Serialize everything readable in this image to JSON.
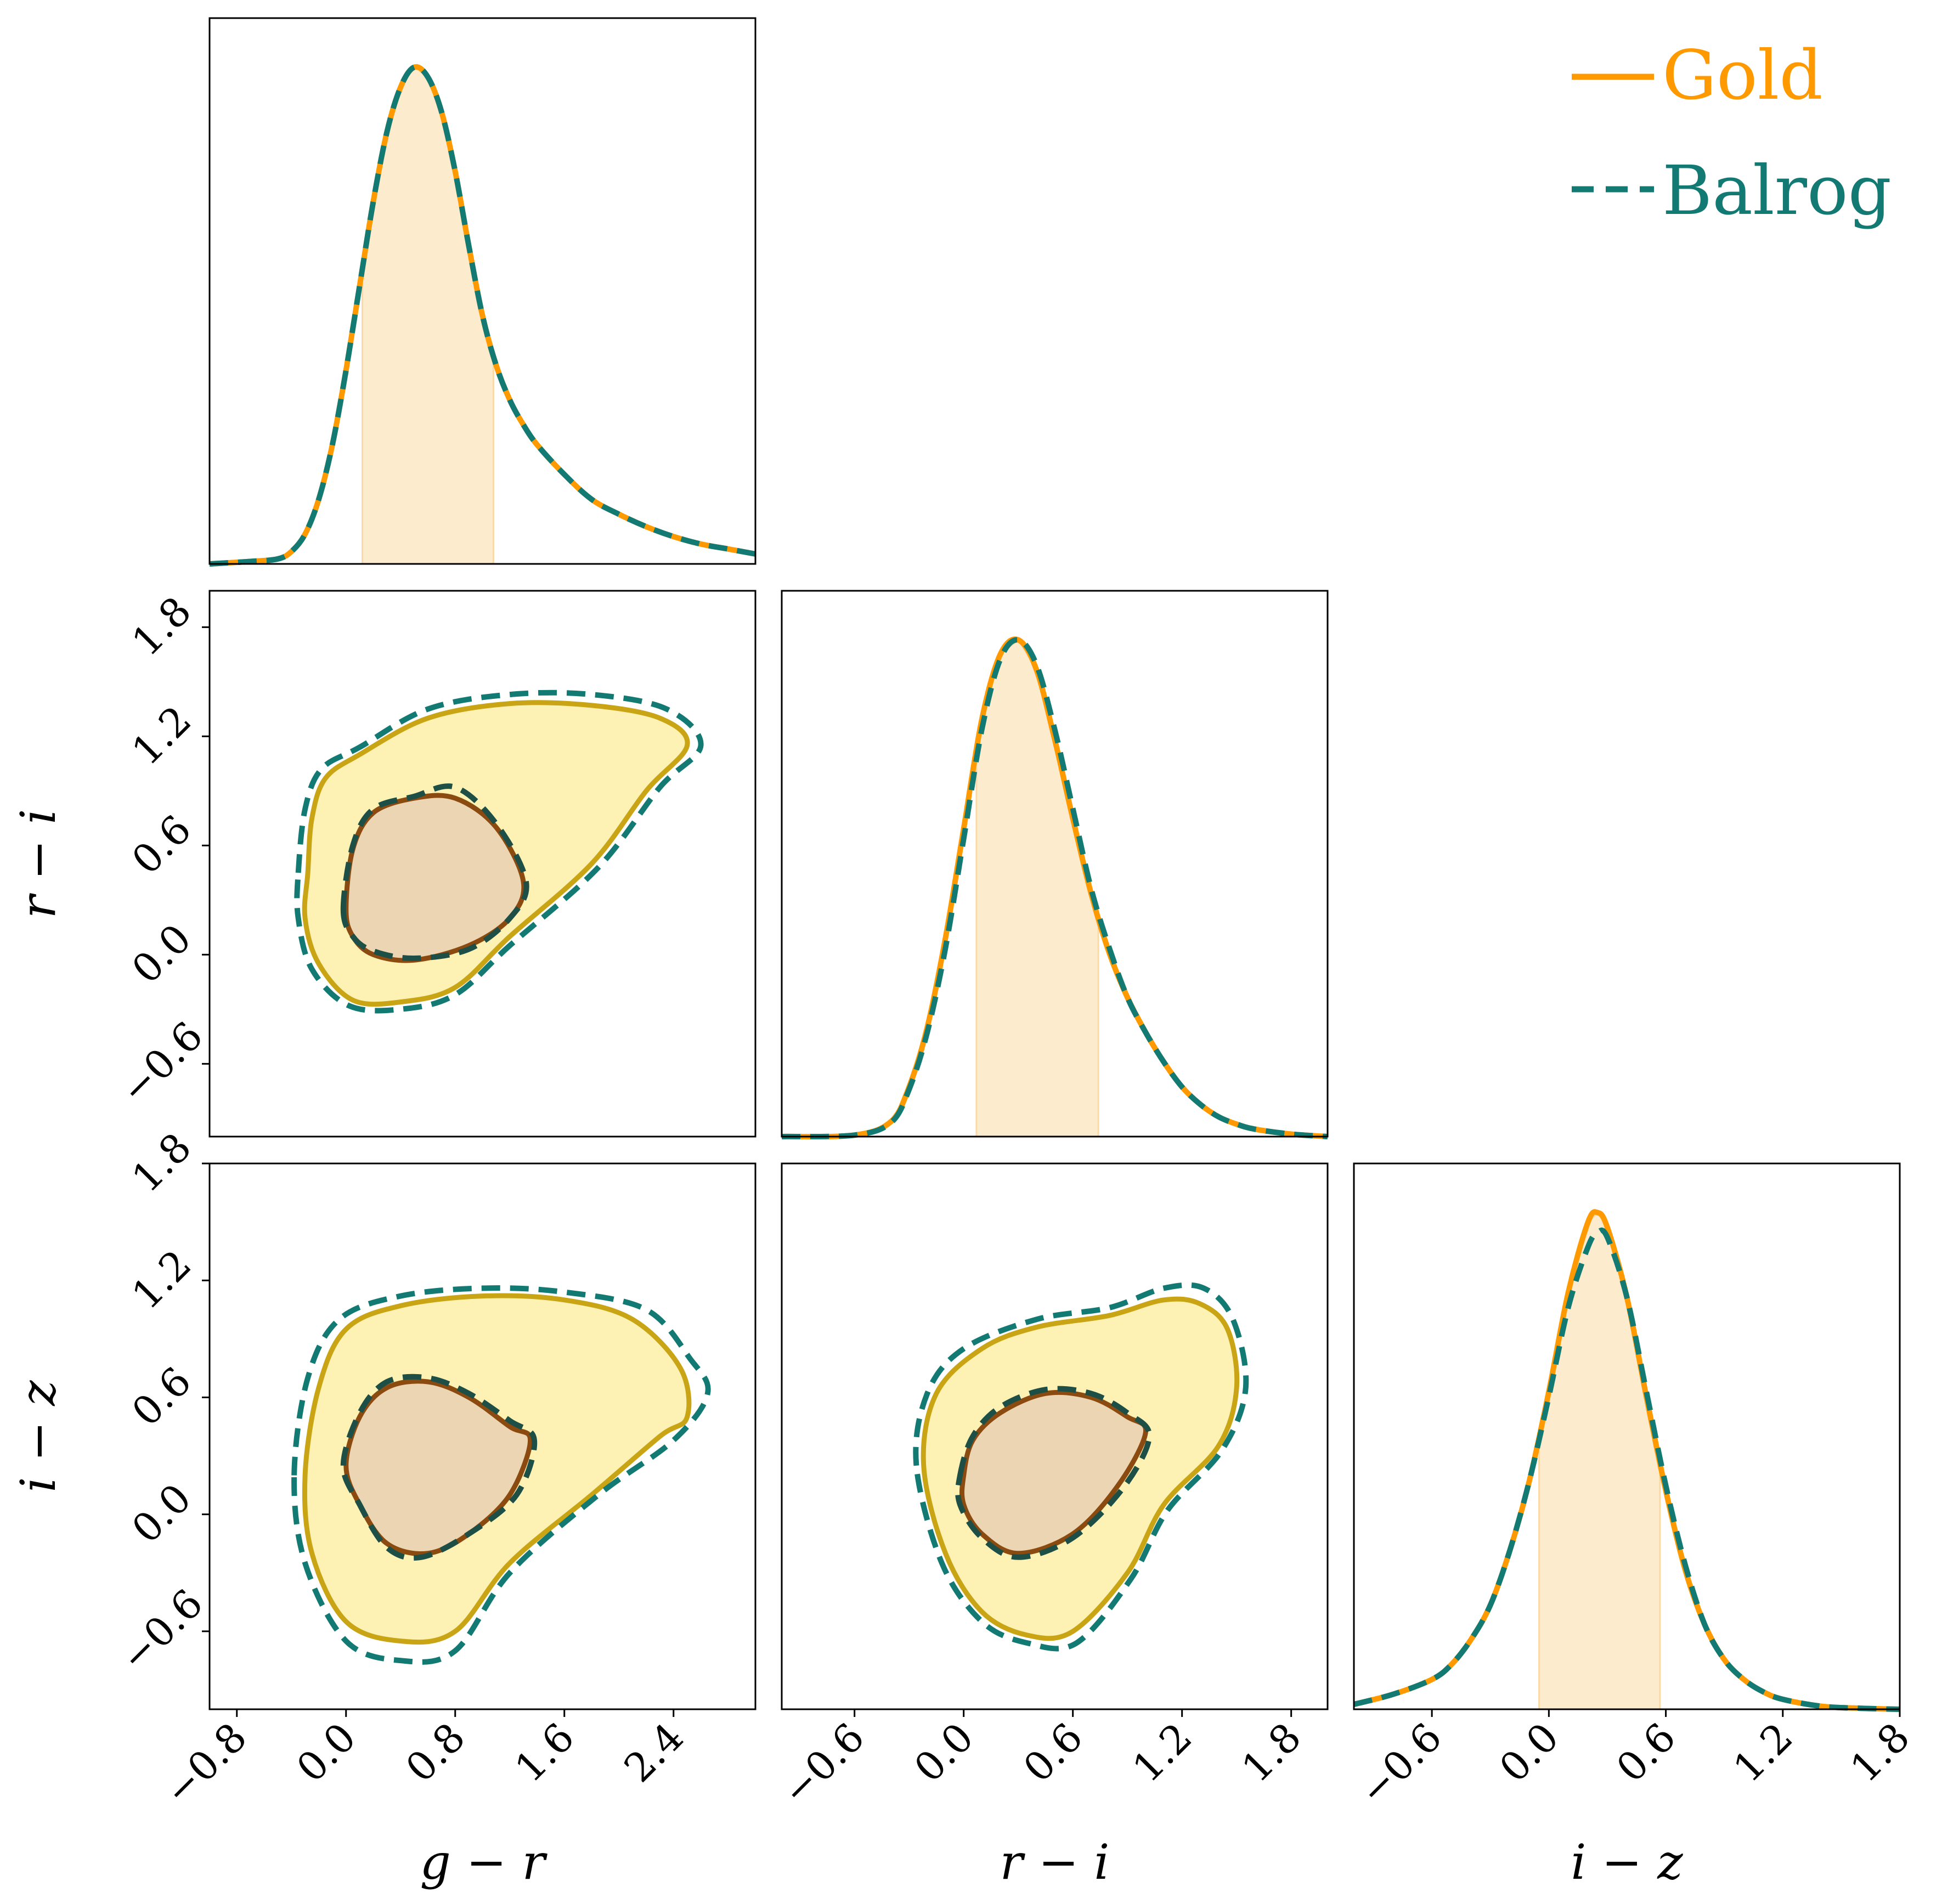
{
  "chart_data": {
    "type": "corner",
    "legend": {
      "placement": "top-right",
      "entries": [
        {
          "name": "Gold",
          "color": "#ff9900",
          "line": "solid"
        },
        {
          "name": "Balrog",
          "color": "#127a73",
          "line": "dashed"
        }
      ]
    },
    "colors": {
      "gold": "#ff9900",
      "balrog": "#127a73",
      "contour_outer_fill": "#fdf2b3",
      "contour_outer_line": "#c9a414",
      "contour_inner_fill": "#ecd5b3",
      "contour_inner_line": "#8a4a10",
      "interval_fill": "#fdebcd"
    },
    "variables": [
      {
        "key": "gr",
        "label": "g − r",
        "range": [
          -1.0,
          3.0
        ],
        "ticks": [
          "−0.8",
          "0.0",
          "0.8",
          "1.6",
          "2.4"
        ],
        "tick_values": [
          -0.8,
          0.0,
          0.8,
          1.6,
          2.4
        ]
      },
      {
        "key": "ri",
        "label": "r − i",
        "range": [
          -1.0,
          2.0
        ],
        "ticks": [
          "−0.6",
          "0.0",
          "0.6",
          "1.2",
          "1.8"
        ],
        "tick_values": [
          -0.6,
          0.0,
          0.6,
          1.2,
          1.8
        ]
      },
      {
        "key": "iz",
        "label": "i − z",
        "range": [
          -1.0,
          1.8
        ],
        "ticks": [
          "−0.6",
          "0.0",
          "0.6",
          "1.2",
          "1.8"
        ],
        "tick_values": [
          -0.6,
          0.0,
          0.6,
          1.2,
          1.8
        ]
      }
    ],
    "marginals": [
      {
        "variable": "gr",
        "interval": [
          0.12,
          1.08
        ],
        "x": [
          -1.0,
          -0.7,
          -0.5,
          -0.4,
          -0.3,
          -0.2,
          -0.1,
          0.0,
          0.1,
          0.2,
          0.3,
          0.4,
          0.5,
          0.6,
          0.7,
          0.8,
          0.9,
          1.0,
          1.1,
          1.2,
          1.3,
          1.4,
          1.6,
          1.8,
          2.0,
          2.2,
          2.4,
          2.6,
          2.8,
          3.0
        ],
        "gold": [
          0.0,
          0.005,
          0.01,
          0.025,
          0.06,
          0.13,
          0.24,
          0.39,
          0.56,
          0.73,
          0.87,
          0.96,
          1.0,
          0.98,
          0.91,
          0.79,
          0.64,
          0.5,
          0.4,
          0.33,
          0.28,
          0.24,
          0.18,
          0.13,
          0.1,
          0.075,
          0.055,
          0.04,
          0.03,
          0.02
        ],
        "balrog": [
          0.0,
          0.005,
          0.01,
          0.025,
          0.06,
          0.13,
          0.24,
          0.39,
          0.56,
          0.73,
          0.87,
          0.96,
          1.0,
          0.98,
          0.91,
          0.79,
          0.64,
          0.5,
          0.4,
          0.33,
          0.28,
          0.24,
          0.18,
          0.13,
          0.1,
          0.075,
          0.055,
          0.04,
          0.03,
          0.02
        ]
      },
      {
        "variable": "ri",
        "interval": [
          0.07,
          0.74
        ],
        "x": [
          -1.0,
          -0.6,
          -0.4,
          -0.3,
          -0.2,
          -0.1,
          0.0,
          0.1,
          0.2,
          0.3,
          0.4,
          0.5,
          0.6,
          0.7,
          0.8,
          0.9,
          1.0,
          1.1,
          1.2,
          1.3,
          1.4,
          1.5,
          1.6,
          1.8,
          2.0
        ],
        "gold": [
          0.0,
          0.003,
          0.03,
          0.1,
          0.22,
          0.4,
          0.62,
          0.84,
          0.97,
          1.0,
          0.94,
          0.8,
          0.64,
          0.49,
          0.37,
          0.28,
          0.21,
          0.15,
          0.1,
          0.065,
          0.04,
          0.025,
          0.015,
          0.005,
          0.0
        ],
        "balrog": [
          0.0,
          0.003,
          0.028,
          0.095,
          0.21,
          0.38,
          0.6,
          0.82,
          0.96,
          1.0,
          0.95,
          0.82,
          0.66,
          0.5,
          0.38,
          0.28,
          0.21,
          0.15,
          0.1,
          0.065,
          0.04,
          0.025,
          0.015,
          0.005,
          0.0
        ]
      },
      {
        "variable": "iz",
        "interval": [
          -0.05,
          0.57
        ],
        "x": [
          -1.0,
          -0.8,
          -0.6,
          -0.5,
          -0.4,
          -0.3,
          -0.2,
          -0.1,
          0.0,
          0.1,
          0.2,
          0.25,
          0.3,
          0.4,
          0.5,
          0.6,
          0.7,
          0.8,
          0.9,
          1.0,
          1.1,
          1.2,
          1.4,
          1.6,
          1.8
        ],
        "gold": [
          0.01,
          0.03,
          0.06,
          0.09,
          0.14,
          0.21,
          0.32,
          0.46,
          0.64,
          0.84,
          0.98,
          1.0,
          0.97,
          0.83,
          0.63,
          0.44,
          0.28,
          0.17,
          0.1,
          0.06,
          0.035,
          0.02,
          0.006,
          0.002,
          0.0
        ],
        "balrog": [
          0.01,
          0.03,
          0.06,
          0.09,
          0.14,
          0.21,
          0.32,
          0.46,
          0.63,
          0.81,
          0.93,
          0.96,
          0.95,
          0.83,
          0.64,
          0.45,
          0.29,
          0.17,
          0.1,
          0.06,
          0.035,
          0.02,
          0.006,
          0.002,
          0.0
        ]
      }
    ],
    "contours": [
      {
        "x": "gr",
        "y": "ri",
        "gold_outer": [
          [
            -0.28,
            0.45
          ],
          [
            -0.25,
            0.75
          ],
          [
            -0.15,
            0.97
          ],
          [
            0.1,
            1.1
          ],
          [
            0.6,
            1.3
          ],
          [
            1.2,
            1.38
          ],
          [
            1.8,
            1.37
          ],
          [
            2.3,
            1.3
          ],
          [
            2.5,
            1.15
          ],
          [
            2.2,
            0.9
          ],
          [
            1.8,
            0.5
          ],
          [
            1.2,
            0.1
          ],
          [
            0.8,
            -0.18
          ],
          [
            0.4,
            -0.26
          ],
          [
            0.05,
            -0.25
          ],
          [
            -0.2,
            -0.05
          ],
          [
            -0.3,
            0.2
          ]
        ],
        "balrog_outer": [
          [
            -0.35,
            0.45
          ],
          [
            -0.3,
            0.8
          ],
          [
            -0.18,
            1.02
          ],
          [
            0.1,
            1.14
          ],
          [
            0.6,
            1.35
          ],
          [
            1.2,
            1.43
          ],
          [
            1.8,
            1.43
          ],
          [
            2.35,
            1.35
          ],
          [
            2.6,
            1.15
          ],
          [
            2.3,
            0.92
          ],
          [
            1.85,
            0.48
          ],
          [
            1.2,
            0.05
          ],
          [
            0.8,
            -0.22
          ],
          [
            0.4,
            -0.3
          ],
          [
            0.02,
            -0.28
          ],
          [
            -0.25,
            -0.08
          ],
          [
            -0.35,
            0.2
          ]
        ],
        "gold_inner": [
          [
            0.0,
            0.25
          ],
          [
            0.05,
            0.58
          ],
          [
            0.2,
            0.78
          ],
          [
            0.5,
            0.86
          ],
          [
            0.8,
            0.86
          ],
          [
            1.1,
            0.7
          ],
          [
            1.3,
            0.4
          ],
          [
            1.2,
            0.2
          ],
          [
            0.9,
            0.05
          ],
          [
            0.5,
            -0.03
          ],
          [
            0.2,
            0.0
          ],
          [
            0.05,
            0.1
          ]
        ],
        "balrog_inner": [
          [
            -0.02,
            0.25
          ],
          [
            0.05,
            0.6
          ],
          [
            0.2,
            0.8
          ],
          [
            0.5,
            0.87
          ],
          [
            0.8,
            0.92
          ],
          [
            1.1,
            0.72
          ],
          [
            1.32,
            0.4
          ],
          [
            1.2,
            0.2
          ],
          [
            0.9,
            0.03
          ],
          [
            0.5,
            -0.02
          ],
          [
            0.2,
            0.02
          ],
          [
            0.05,
            0.1
          ]
        ]
      },
      {
        "x": "gr",
        "y": "iz",
        "gold_outer": [
          [
            -0.3,
            0.2
          ],
          [
            -0.2,
            0.65
          ],
          [
            0.0,
            0.95
          ],
          [
            0.4,
            1.07
          ],
          [
            1.0,
            1.12
          ],
          [
            1.6,
            1.1
          ],
          [
            2.1,
            1.0
          ],
          [
            2.45,
            0.75
          ],
          [
            2.5,
            0.5
          ],
          [
            2.3,
            0.4
          ],
          [
            1.8,
            0.1
          ],
          [
            1.2,
            -0.25
          ],
          [
            0.8,
            -0.6
          ],
          [
            0.4,
            -0.65
          ],
          [
            0.0,
            -0.55
          ],
          [
            -0.25,
            -0.2
          ]
        ],
        "balrog_outer": [
          [
            -0.38,
            0.2
          ],
          [
            -0.28,
            0.7
          ],
          [
            -0.05,
            1.0
          ],
          [
            0.4,
            1.12
          ],
          [
            1.0,
            1.16
          ],
          [
            1.6,
            1.14
          ],
          [
            2.2,
            1.05
          ],
          [
            2.52,
            0.8
          ],
          [
            2.65,
            0.62
          ],
          [
            2.4,
            0.38
          ],
          [
            1.85,
            0.1
          ],
          [
            1.2,
            -0.3
          ],
          [
            0.8,
            -0.7
          ],
          [
            0.4,
            -0.75
          ],
          [
            0.0,
            -0.65
          ],
          [
            -0.3,
            -0.25
          ]
        ],
        "gold_inner": [
          [
            0.0,
            0.25
          ],
          [
            0.1,
            0.5
          ],
          [
            0.3,
            0.65
          ],
          [
            0.6,
            0.68
          ],
          [
            0.9,
            0.6
          ],
          [
            1.2,
            0.45
          ],
          [
            1.35,
            0.38
          ],
          [
            1.2,
            0.1
          ],
          [
            0.9,
            -0.1
          ],
          [
            0.6,
            -0.2
          ],
          [
            0.3,
            -0.15
          ],
          [
            0.1,
            0.05
          ]
        ],
        "balrog_inner": [
          [
            -0.02,
            0.25
          ],
          [
            0.1,
            0.52
          ],
          [
            0.3,
            0.68
          ],
          [
            0.6,
            0.7
          ],
          [
            0.9,
            0.62
          ],
          [
            1.2,
            0.48
          ],
          [
            1.38,
            0.38
          ],
          [
            1.25,
            0.1
          ],
          [
            0.9,
            -0.1
          ],
          [
            0.55,
            -0.22
          ],
          [
            0.3,
            -0.17
          ],
          [
            0.1,
            0.05
          ]
        ]
      },
      {
        "x": "ri",
        "y": "iz",
        "gold_outer": [
          [
            -0.22,
            0.25
          ],
          [
            -0.15,
            0.62
          ],
          [
            0.1,
            0.85
          ],
          [
            0.4,
            0.96
          ],
          [
            0.8,
            1.02
          ],
          [
            1.1,
            1.1
          ],
          [
            1.3,
            1.08
          ],
          [
            1.45,
            0.95
          ],
          [
            1.5,
            0.65
          ],
          [
            1.4,
            0.35
          ],
          [
            1.1,
            0.05
          ],
          [
            0.9,
            -0.3
          ],
          [
            0.6,
            -0.6
          ],
          [
            0.35,
            -0.62
          ],
          [
            0.1,
            -0.5
          ],
          [
            -0.1,
            -0.2
          ]
        ],
        "balrog_outer": [
          [
            -0.26,
            0.25
          ],
          [
            -0.2,
            0.62
          ],
          [
            0.0,
            0.85
          ],
          [
            0.4,
            1.0
          ],
          [
            0.8,
            1.06
          ],
          [
            1.1,
            1.16
          ],
          [
            1.32,
            1.16
          ],
          [
            1.48,
            1.0
          ],
          [
            1.55,
            0.65
          ],
          [
            1.42,
            0.33
          ],
          [
            1.12,
            0.02
          ],
          [
            0.92,
            -0.33
          ],
          [
            0.62,
            -0.66
          ],
          [
            0.35,
            -0.66
          ],
          [
            0.1,
            -0.55
          ],
          [
            -0.12,
            -0.25
          ]
        ],
        "gold_inner": [
          [
            0.0,
            0.2
          ],
          [
            0.05,
            0.38
          ],
          [
            0.2,
            0.52
          ],
          [
            0.45,
            0.62
          ],
          [
            0.7,
            0.6
          ],
          [
            0.9,
            0.5
          ],
          [
            1.0,
            0.42
          ],
          [
            0.85,
            0.15
          ],
          [
            0.6,
            -0.1
          ],
          [
            0.3,
            -0.2
          ],
          [
            0.1,
            -0.1
          ],
          [
            0.0,
            0.05
          ]
        ],
        "balrog_inner": [
          [
            -0.02,
            0.2
          ],
          [
            0.05,
            0.4
          ],
          [
            0.2,
            0.55
          ],
          [
            0.45,
            0.64
          ],
          [
            0.7,
            0.62
          ],
          [
            0.9,
            0.52
          ],
          [
            1.02,
            0.4
          ],
          [
            0.88,
            0.14
          ],
          [
            0.6,
            -0.12
          ],
          [
            0.3,
            -0.22
          ],
          [
            0.1,
            -0.12
          ],
          [
            -0.02,
            0.05
          ]
        ]
      }
    ]
  }
}
